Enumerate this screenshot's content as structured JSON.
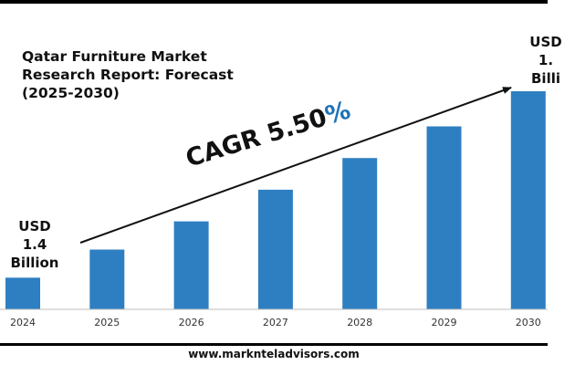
{
  "title_lines": [
    "Qatar Furniture Market",
    "Research Report: Forecast",
    "(2025-2030)"
  ],
  "start_label": {
    "line1": "USD",
    "line2": "1.4",
    "line3": "Billion"
  },
  "end_label": {
    "line1": "USD",
    "line2": "1.",
    "line3": "Billi"
  },
  "cagr": {
    "text": "CAGR 5.50",
    "pct": "%"
  },
  "footer": "www.marknteladvisors.com",
  "colors": {
    "bar": "#2e7fc1",
    "axis": "#bfbfbf",
    "accent": "#1f73b7"
  },
  "chart_data": {
    "type": "bar",
    "categories": [
      "2024",
      "2025",
      "2026",
      "2027",
      "2028",
      "2029",
      "2030"
    ],
    "values": [
      1.4,
      1.48,
      1.56,
      1.65,
      1.74,
      1.83,
      1.93
    ],
    "title": "Qatar Furniture Market Research Report: Forecast (2025-2030)",
    "xlabel": "",
    "ylabel": "",
    "ylim": [
      1.31,
      1.93
    ],
    "grid": false,
    "legend": "none"
  }
}
